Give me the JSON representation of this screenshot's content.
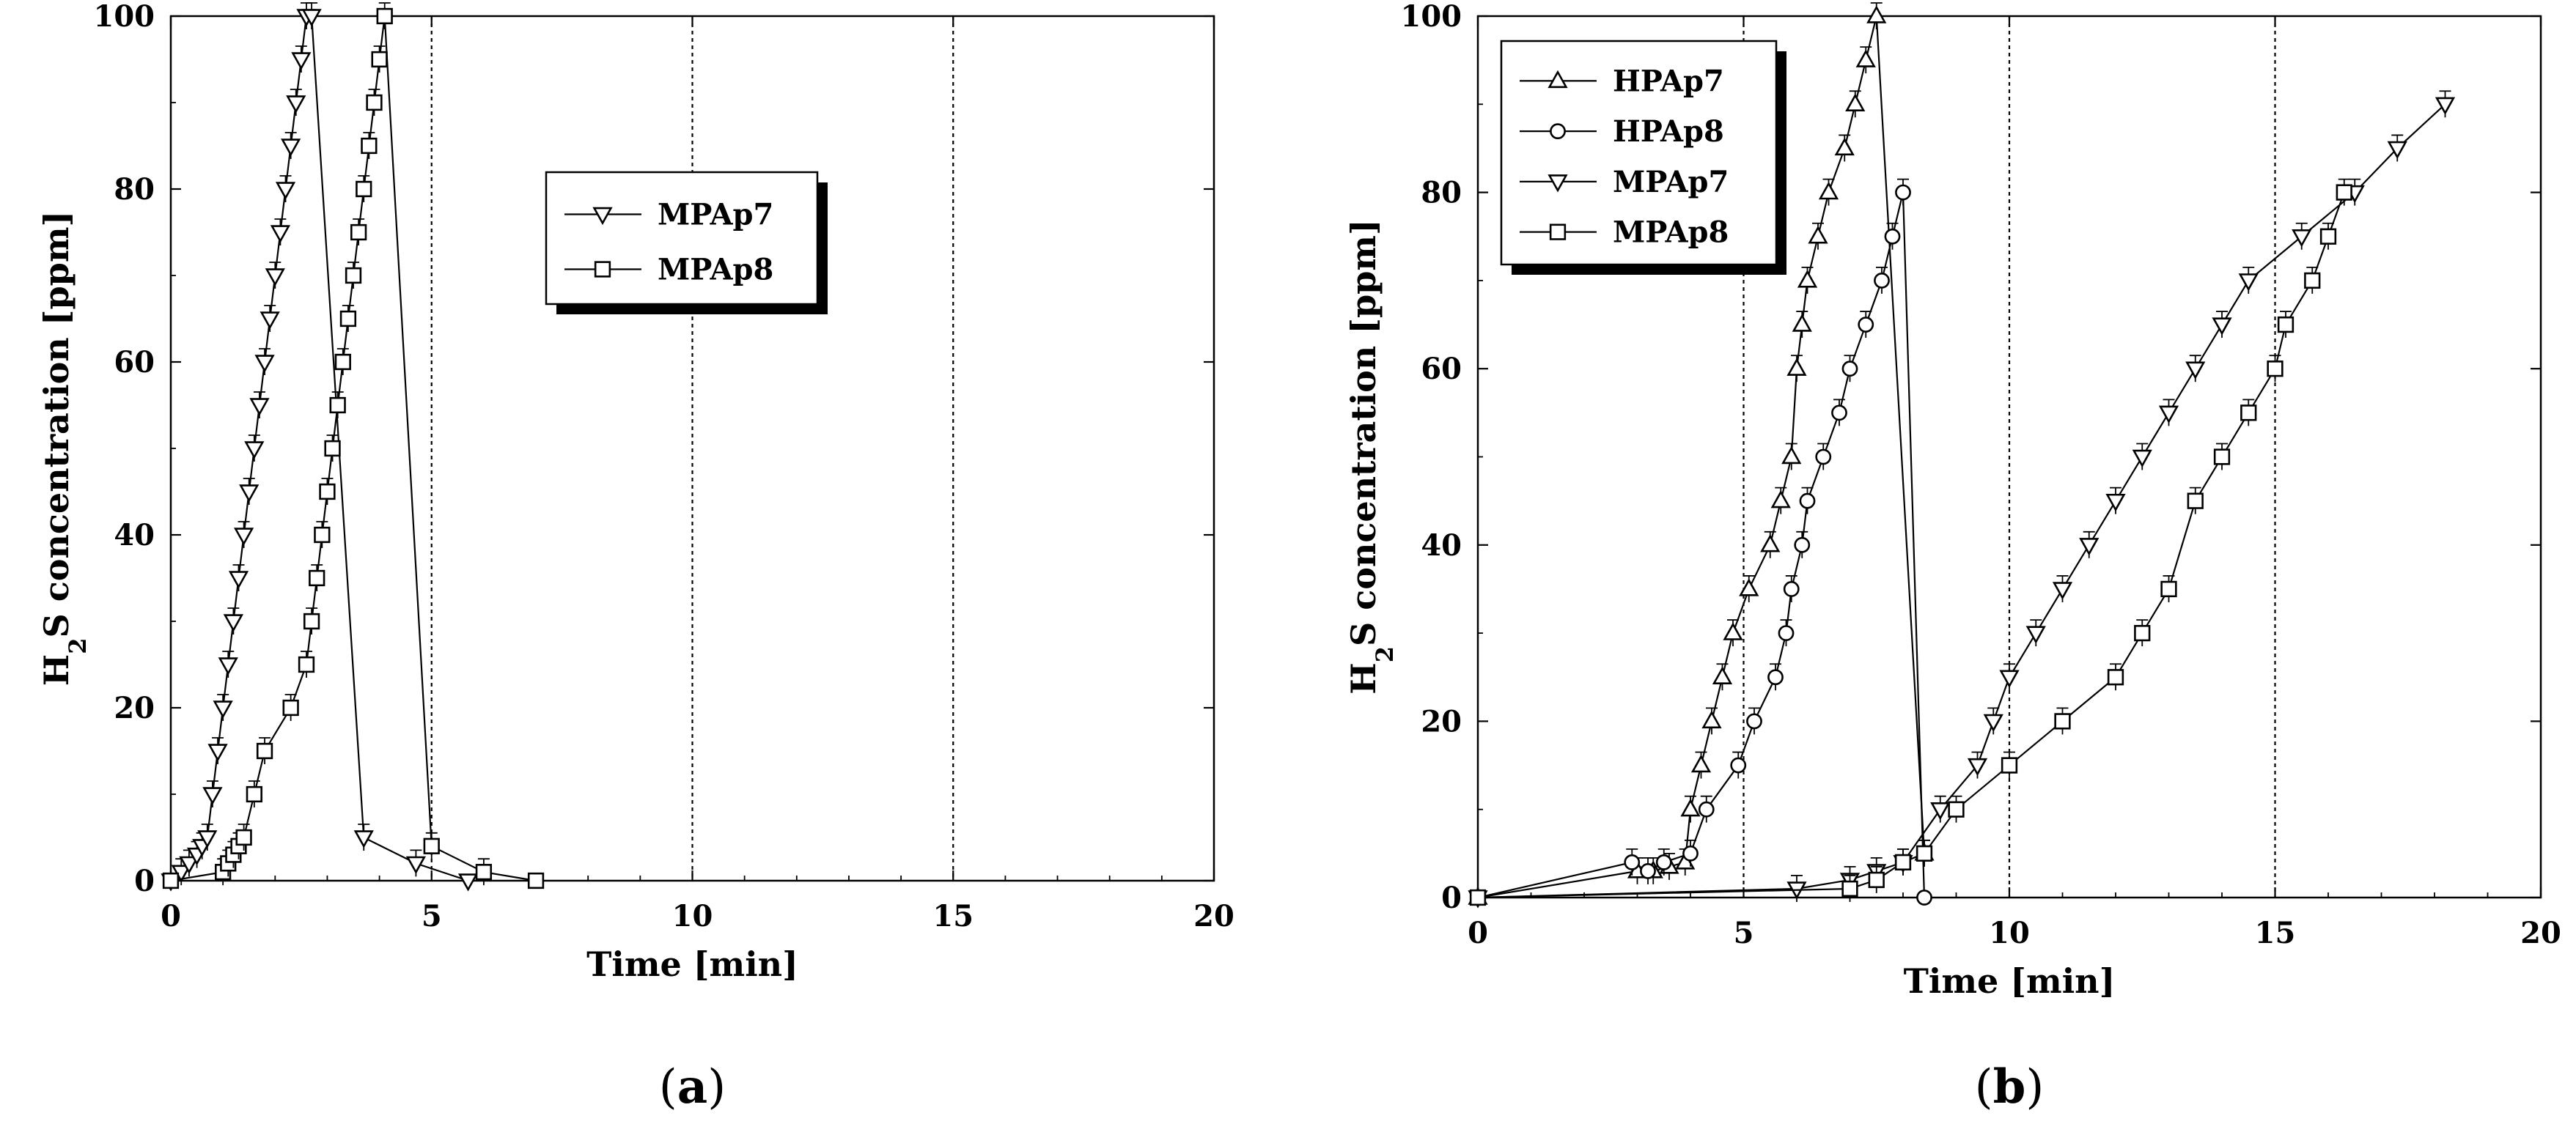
{
  "chart_data": [
    {
      "type": "line",
      "panel_label": "a",
      "xlabel": "Time [min]",
      "ylabel_main": "H",
      "ylabel_sub": "2",
      "ylabel_rest": "S concentration [ppm]",
      "xlim": [
        0,
        20
      ],
      "ylim": [
        0,
        100
      ],
      "xticks": [
        0,
        5,
        10,
        15,
        20
      ],
      "yticks": [
        0,
        20,
        40,
        60,
        80,
        100
      ],
      "vlines": [
        5,
        10,
        15
      ],
      "legend_position": "upper-center",
      "series": [
        {
          "name": "MPAp7",
          "marker": "triangle-down",
          "x": [
            0,
            0.2,
            0.35,
            0.5,
            0.6,
            0.7,
            0.8,
            0.9,
            1.0,
            1.1,
            1.2,
            1.3,
            1.4,
            1.5,
            1.6,
            1.7,
            1.8,
            1.9,
            2.0,
            2.1,
            2.2,
            2.3,
            2.4,
            2.5,
            2.6,
            2.7,
            3.7,
            4.7,
            5.7
          ],
          "y": [
            0,
            1,
            2,
            3,
            4,
            5,
            10,
            15,
            20,
            25,
            30,
            35,
            40,
            45,
            50,
            55,
            60,
            65,
            70,
            75,
            80,
            85,
            90,
            95,
            100,
            100,
            5,
            2,
            0
          ]
        },
        {
          "name": "MPAp8",
          "marker": "square",
          "x": [
            0,
            1.0,
            1.1,
            1.2,
            1.3,
            1.4,
            1.6,
            1.8,
            2.3,
            2.6,
            2.7,
            2.8,
            2.9,
            3.0,
            3.1,
            3.2,
            3.3,
            3.4,
            3.5,
            3.6,
            3.7,
            3.8,
            3.9,
            4.0,
            4.1,
            5.0,
            6.0,
            7.0
          ],
          "y": [
            0,
            1,
            2,
            3,
            4,
            5,
            10,
            15,
            20,
            25,
            30,
            35,
            40,
            45,
            50,
            55,
            60,
            65,
            70,
            75,
            80,
            85,
            90,
            95,
            100,
            4,
            1,
            0
          ]
        }
      ]
    },
    {
      "type": "line",
      "panel_label": "b",
      "xlabel": "Time [min]",
      "ylabel_main": "H",
      "ylabel_sub": "2",
      "ylabel_rest": "S concentration [ppm]",
      "xlim": [
        0,
        20
      ],
      "ylim": [
        0,
        100
      ],
      "xticks": [
        0,
        5,
        10,
        15,
        20
      ],
      "yticks": [
        0,
        20,
        40,
        60,
        80,
        100
      ],
      "vlines": [
        5,
        10,
        15
      ],
      "legend_position": "upper-left",
      "series": [
        {
          "name": "HPAp7",
          "marker": "triangle-up",
          "x": [
            0,
            3.0,
            3.3,
            3.6,
            3.9,
            4.0,
            4.2,
            4.4,
            4.6,
            4.8,
            5.1,
            5.5,
            5.7,
            5.9,
            6.0,
            6.1,
            6.2,
            6.4,
            6.6,
            6.9,
            7.1,
            7.3,
            7.5,
            8.4
          ],
          "y": [
            0,
            3,
            3,
            3.5,
            4,
            10,
            15,
            20,
            25,
            30,
            35,
            40,
            45,
            50,
            60,
            65,
            70,
            75,
            80,
            85,
            90,
            95,
            100,
            5
          ]
        },
        {
          "name": "HPAp8",
          "marker": "circle",
          "x": [
            0,
            2.9,
            3.2,
            3.5,
            4.0,
            4.3,
            4.9,
            5.2,
            5.6,
            5.8,
            5.9,
            6.1,
            6.2,
            6.5,
            6.8,
            7.0,
            7.3,
            7.6,
            7.8,
            8.0,
            8.4
          ],
          "y": [
            0,
            4,
            3,
            4,
            5,
            10,
            15,
            20,
            25,
            30,
            35,
            40,
            45,
            50,
            55,
            60,
            65,
            70,
            75,
            80,
            0
          ]
        },
        {
          "name": "MPAp7",
          "marker": "triangle-down",
          "x": [
            0,
            6.0,
            7.0,
            7.5,
            8.0,
            8.7,
            9.4,
            9.7,
            10.0,
            10.5,
            11.0,
            11.5,
            12.0,
            12.5,
            13.0,
            13.5,
            14.0,
            14.5,
            15.5,
            16.5,
            17.3,
            18.2
          ],
          "y": [
            0,
            1,
            2,
            3,
            4,
            10,
            15,
            20,
            25,
            30,
            35,
            40,
            45,
            50,
            55,
            60,
            65,
            70,
            75,
            80,
            85,
            90
          ]
        },
        {
          "name": "MPAp8",
          "marker": "square",
          "x": [
            0,
            7.0,
            7.5,
            8.0,
            8.4,
            9.0,
            10.0,
            11.0,
            12.0,
            12.5,
            13.0,
            13.5,
            14.0,
            14.5,
            15.0,
            15.2,
            15.7,
            16.0,
            16.3
          ],
          "y": [
            0,
            1,
            2,
            4,
            5,
            10,
            15,
            20,
            25,
            30,
            35,
            45,
            50,
            55,
            60,
            65,
            70,
            75,
            80
          ]
        }
      ]
    }
  ]
}
